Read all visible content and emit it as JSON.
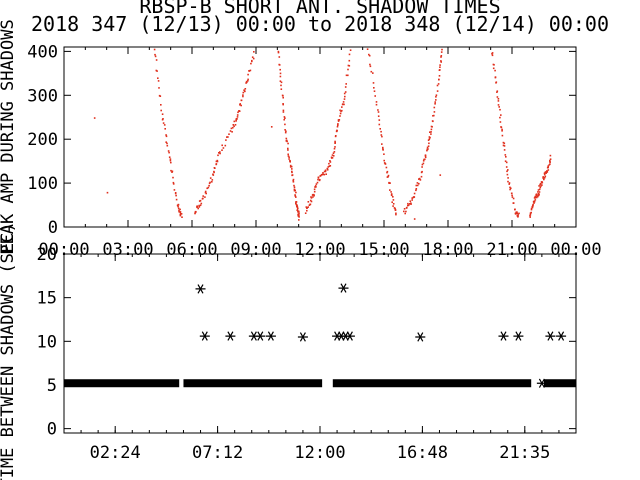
{
  "page": {
    "title": "RBSP-B SHORT ANT. SHADOW TIMES",
    "subtitle": "2018 347 (12/13) 00:00 to 2018 348 (12/14) 00:00"
  },
  "chart_data": [
    {
      "type": "scatter",
      "ylabel": "PEAK AMP DURING SHADOWS",
      "ylim": [
        0,
        410
      ],
      "xlim": [
        0,
        24
      ],
      "yticks": [
        "0",
        "100",
        "200",
        "300",
        "400"
      ],
      "xtick_labels": [
        "00:00",
        "03:00",
        "06:00",
        "09:00",
        "12:00",
        "15:00",
        "18:00",
        "21:00",
        "00:00"
      ],
      "point_color": "#e0301e",
      "series": [
        {
          "values": [
            [
              4.2,
              410
            ],
            [
              4.6,
              250
            ],
            [
              4.95,
              150
            ],
            [
              5.3,
              50
            ],
            [
              5.5,
              22
            ]
          ]
        },
        {
          "values": [
            [
              6.1,
              35
            ],
            [
              6.4,
              60
            ],
            [
              6.9,
              110
            ],
            [
              7.2,
              165
            ],
            [
              7.9,
              230
            ],
            [
              8.2,
              270
            ],
            [
              8.5,
              330
            ],
            [
              8.9,
              400
            ]
          ]
        },
        {
          "values": [
            [
              10.0,
              410
            ],
            [
              10.2,
              300
            ],
            [
              10.4,
              200
            ],
            [
              10.6,
              140
            ],
            [
              10.8,
              80
            ],
            [
              10.9,
              40
            ],
            [
              11.0,
              20
            ]
          ]
        },
        {
          "values": [
            [
              11.3,
              40
            ],
            [
              11.6,
              70
            ],
            [
              11.9,
              110
            ],
            [
              12.3,
              130
            ],
            [
              12.6,
              170
            ],
            [
              12.8,
              240
            ],
            [
              13.1,
              290
            ],
            [
              13.4,
              410
            ]
          ]
        },
        {
          "values": [
            [
              14.2,
              410
            ],
            [
              14.7,
              260
            ],
            [
              15.0,
              150
            ],
            [
              15.3,
              80
            ],
            [
              15.55,
              25
            ]
          ]
        },
        {
          "values": [
            [
              15.9,
              35
            ],
            [
              16.3,
              65
            ],
            [
              16.7,
              120
            ],
            [
              17.0,
              180
            ],
            [
              17.2,
              230
            ],
            [
              17.5,
              330
            ],
            [
              17.7,
              410
            ]
          ]
        },
        {
          "values": [
            [
              20.0,
              410
            ],
            [
              20.3,
              300
            ],
            [
              20.55,
              200
            ],
            [
              20.8,
              110
            ],
            [
              21.1,
              40
            ],
            [
              21.3,
              25
            ]
          ]
        },
        {
          "values": [
            [
              21.8,
              30
            ],
            [
              22.0,
              60
            ],
            [
              22.2,
              80
            ],
            [
              22.4,
              110
            ],
            [
              22.6,
              130
            ],
            [
              22.8,
              160
            ]
          ]
        }
      ]
    },
    {
      "type": "scatter",
      "ylabel": "TIME BETWEEN SHADOWS (SEC)",
      "ylim": [
        -0.5,
        20
      ],
      "xlim": [
        0,
        24
      ],
      "yticks": [
        "0",
        "5",
        "10",
        "15",
        "20"
      ],
      "xtick_labels": [
        "02:24",
        "07:12",
        "12:00",
        "16:48",
        "21:35"
      ],
      "point_color": "#000000",
      "baseline_segments": [
        [
          0,
          5.4,
          5.2
        ],
        [
          5.6,
          12.1,
          5.2
        ],
        [
          12.6,
          21.9,
          5.2
        ],
        [
          22.5,
          24,
          5.2
        ]
      ],
      "points": [
        [
          6.4,
          16.0
        ],
        [
          6.6,
          10.6
        ],
        [
          7.8,
          10.6
        ],
        [
          8.9,
          10.6
        ],
        [
          9.2,
          10.6
        ],
        [
          9.7,
          10.6
        ],
        [
          11.2,
          10.5
        ],
        [
          12.8,
          10.6
        ],
        [
          13.0,
          10.6
        ],
        [
          13.2,
          10.6
        ],
        [
          13.4,
          10.6
        ],
        [
          13.1,
          16.1
        ],
        [
          16.7,
          10.5
        ],
        [
          20.6,
          10.6
        ],
        [
          21.3,
          10.6
        ],
        [
          22.4,
          5.2
        ],
        [
          22.8,
          10.6
        ],
        [
          23.3,
          10.6
        ]
      ]
    }
  ]
}
